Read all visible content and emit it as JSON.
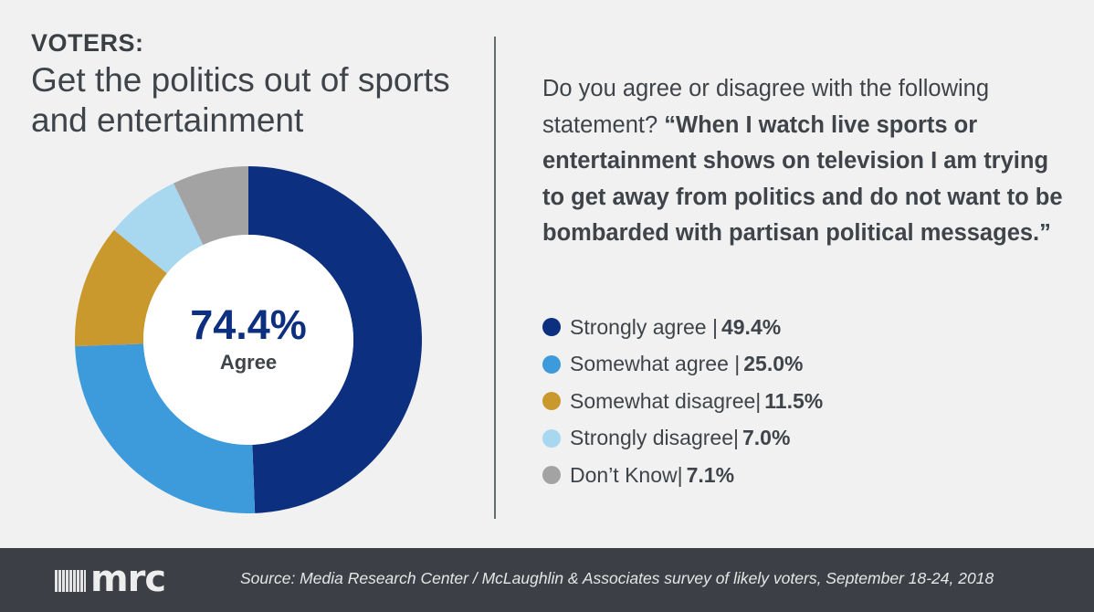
{
  "header": {
    "kicker": "VOTERS:",
    "title": "Get the politics out of sports and entertainment"
  },
  "question": {
    "intro": "Do you agree or disagree with the following statement?",
    "statement": "“When I watch live sports or entertainment shows on television I am trying to get away from politics and do not want to be bombarded with partisan political messages.”"
  },
  "center": {
    "value": "74.4%",
    "label": "Agree"
  },
  "legend": [
    {
      "label": "Strongly agree |",
      "value": "49.4%"
    },
    {
      "label": "Somewhat agree |",
      "value": "25.0%"
    },
    {
      "label": "Somewhat disagree|",
      "value": "11.5%"
    },
    {
      "label": "Strongly disagree|",
      "value": "7.0%"
    },
    {
      "label": "Don’t Know|",
      "value": "7.1%"
    }
  ],
  "footer": {
    "logo": "mrc",
    "source": "Source: Media Research Center / McLaughlin & Associates survey of likely voters, September 18-24, 2018"
  },
  "chart_data": {
    "type": "pie",
    "style": "donut",
    "categories": [
      "Strongly agree",
      "Somewhat agree",
      "Somewhat disagree",
      "Strongly disagree",
      "Don’t Know"
    ],
    "values": [
      49.4,
      25.0,
      11.5,
      7.0,
      7.1
    ],
    "colors": [
      "#0d2f7f",
      "#3e9bdb",
      "#c9992e",
      "#a8d8f0",
      "#a3a3a3"
    ],
    "start": "top, clockwise",
    "legend_position": "right"
  }
}
